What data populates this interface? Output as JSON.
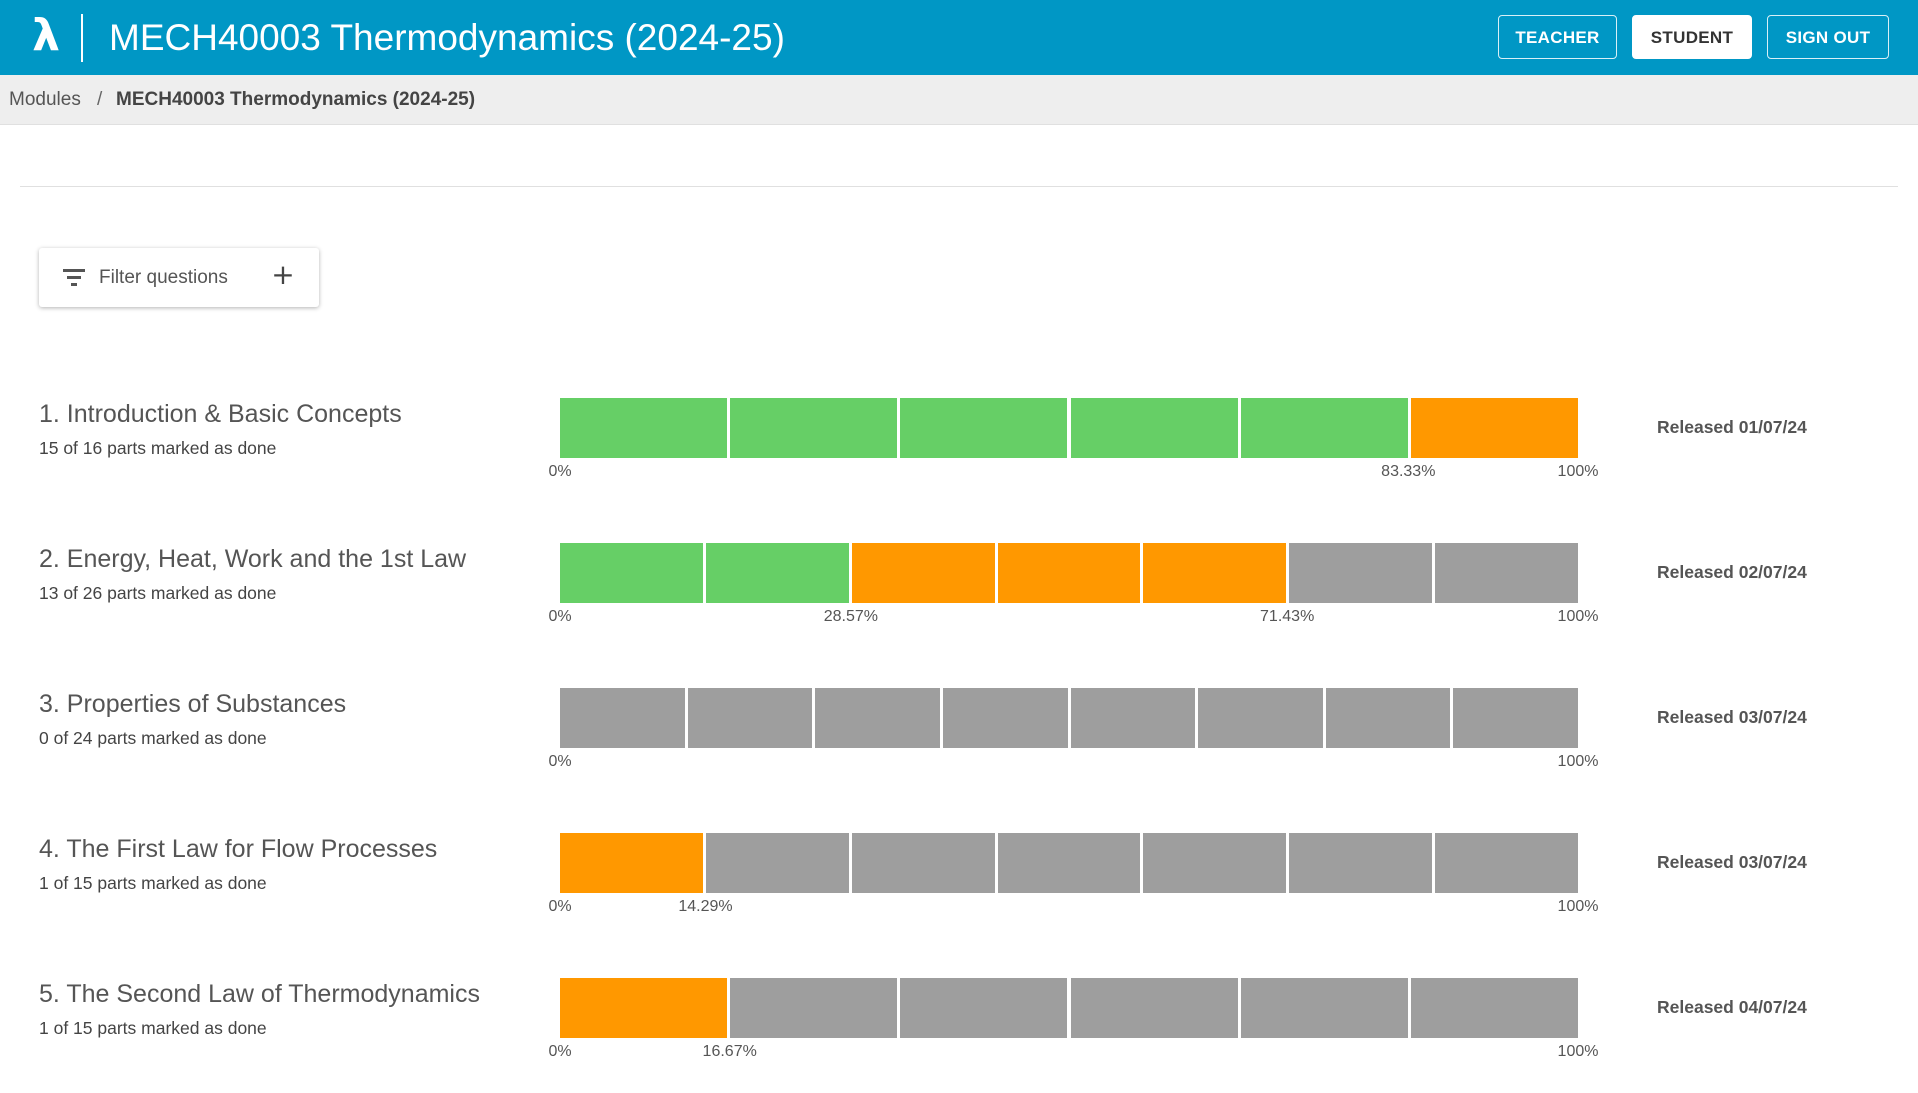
{
  "header": {
    "logo": "λ",
    "title": "MECH40003 Thermodynamics (2024-25)",
    "buttons": {
      "teacher": "TEACHER",
      "student": "STUDENT",
      "sign_out": "SIGN OUT"
    },
    "active_role": "student"
  },
  "breadcrumb": {
    "root": "Modules",
    "separator": "/",
    "current": "MECH40003 Thermodynamics (2024-25)"
  },
  "filter": {
    "label": "Filter questions",
    "add_symbol": "+"
  },
  "colors": {
    "header": "#0097c5",
    "done": "#66cf66",
    "in_progress": "#ff9800",
    "not_started": "#9e9e9e"
  },
  "topics": [
    {
      "title": "1. Introduction & Basic Concepts",
      "subtitle": "15 of 16 parts marked as done",
      "released": "Released 01/07/24",
      "segments": [
        "done",
        "done",
        "done",
        "done",
        "done",
        "partial"
      ],
      "ticks": [
        {
          "label": "0%",
          "value": 0
        },
        {
          "label": "83.33%",
          "value": 83.33
        },
        {
          "label": "100%",
          "value": 100
        }
      ]
    },
    {
      "title": "2. Energy, Heat, Work and the 1st Law",
      "subtitle": "13 of 26 parts marked as done",
      "released": "Released 02/07/24",
      "segments": [
        "done",
        "done",
        "partial",
        "partial",
        "partial",
        "todo",
        "todo"
      ],
      "ticks": [
        {
          "label": "0%",
          "value": 0
        },
        {
          "label": "28.57%",
          "value": 28.57
        },
        {
          "label": "71.43%",
          "value": 71.43
        },
        {
          "label": "100%",
          "value": 100
        }
      ]
    },
    {
      "title": "3. Properties of Substances",
      "subtitle": "0 of 24 parts marked as done",
      "released": "Released 03/07/24",
      "segments": [
        "todo",
        "todo",
        "todo",
        "todo",
        "todo",
        "todo",
        "todo",
        "todo"
      ],
      "ticks": [
        {
          "label": "0%",
          "value": 0
        },
        {
          "label": "100%",
          "value": 100
        }
      ]
    },
    {
      "title": "4. The First Law for Flow Processes",
      "subtitle": "1 of 15 parts marked as done",
      "released": "Released 03/07/24",
      "segments": [
        "partial",
        "todo",
        "todo",
        "todo",
        "todo",
        "todo",
        "todo"
      ],
      "ticks": [
        {
          "label": "0%",
          "value": 0
        },
        {
          "label": "14.29%",
          "value": 14.29
        },
        {
          "label": "100%",
          "value": 100
        }
      ]
    },
    {
      "title": "5. The Second Law of Thermodynamics",
      "subtitle": "1 of 15 parts marked as done",
      "released": "Released 04/07/24",
      "segments": [
        "partial",
        "todo",
        "todo",
        "todo",
        "todo",
        "todo"
      ],
      "ticks": [
        {
          "label": "0%",
          "value": 0
        },
        {
          "label": "16.67%",
          "value": 16.67
        },
        {
          "label": "100%",
          "value": 100
        }
      ]
    }
  ]
}
